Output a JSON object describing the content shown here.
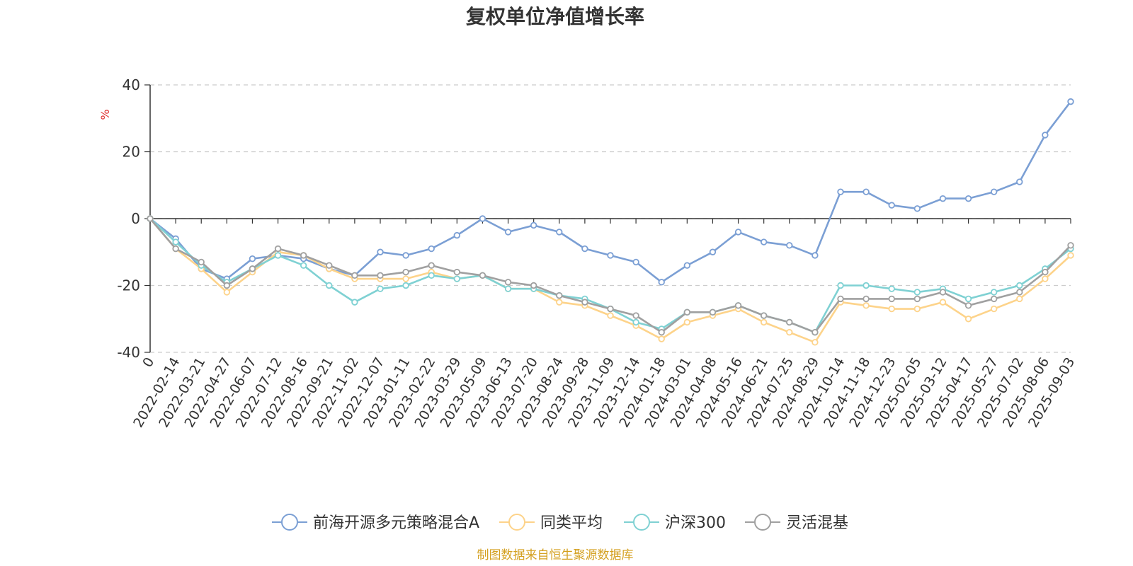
{
  "chart_data": {
    "type": "line",
    "title": "复权单位净值增长率",
    "ylabel": "%",
    "ylim": [
      -40,
      40
    ],
    "yticks": [
      40,
      20,
      0,
      -20,
      -40
    ],
    "grid": true,
    "legend_position": "bottom",
    "x_categories": [
      "0",
      "2022-02-14",
      "2022-03-21",
      "2022-04-27",
      "2022-06-07",
      "2022-07-12",
      "2022-08-16",
      "2022-09-21",
      "2022-11-02",
      "2022-12-07",
      "2023-01-11",
      "2023-02-22",
      "2023-03-29",
      "2023-05-09",
      "2023-06-13",
      "2023-07-20",
      "2023-08-24",
      "2023-09-28",
      "2023-11-09",
      "2023-12-14",
      "2024-01-18",
      "2024-03-01",
      "2024-04-08",
      "2024-05-16",
      "2024-06-21",
      "2024-07-25",
      "2024-08-29",
      "2024-10-14",
      "2024-11-18",
      "2024-12-23",
      "2025-02-05",
      "2025-03-12",
      "2025-04-17",
      "2025-05-27",
      "2025-07-02",
      "2025-08-06",
      "2025-09-03"
    ],
    "series": [
      {
        "name": "前海开源多元策略混合A",
        "color": "#7b9fd4",
        "values": [
          0,
          -6,
          -15,
          -18,
          -12,
          -11,
          -12,
          -15,
          -17,
          -10,
          -11,
          -9,
          -5,
          0,
          -4,
          -2,
          -4,
          -9,
          -11,
          -13,
          -19,
          -14,
          -10,
          -4,
          -7,
          -8,
          -11,
          8,
          8,
          4,
          3,
          6,
          6,
          8,
          11,
          25,
          35
        ]
      },
      {
        "name": "同类平均",
        "color": "#fdd38a",
        "values": [
          0,
          -9,
          -15,
          -22,
          -16,
          -10,
          -11,
          -15,
          -18,
          -18,
          -18,
          -16,
          -18,
          -17,
          -21,
          -21,
          -25,
          -26,
          -29,
          -32,
          -36,
          -31,
          -29,
          -27,
          -31,
          -34,
          -37,
          -25,
          -26,
          -27,
          -27,
          -25,
          -30,
          -27,
          -24,
          -18,
          -11
        ]
      },
      {
        "name": "沪深300",
        "color": "#7fd1d3",
        "values": [
          0,
          -7,
          -14,
          -19,
          -15,
          -11,
          -14,
          -20,
          -25,
          -21,
          -20,
          -17,
          -18,
          -17,
          -21,
          -21,
          -23,
          -24,
          -27,
          -31,
          -33,
          -28,
          -28,
          -26,
          -29,
          -31,
          -34,
          -20,
          -20,
          -21,
          -22,
          -21,
          -24,
          -22,
          -20,
          -15,
          -9
        ]
      },
      {
        "name": "灵活混基",
        "color": "#a0a0a0",
        "values": [
          0,
          -9,
          -13,
          -20,
          -15,
          -9,
          -11,
          -14,
          -17,
          -17,
          -16,
          -14,
          -16,
          -17,
          -19,
          -20,
          -23,
          -25,
          -27,
          -29,
          -34,
          -28,
          -28,
          -26,
          -29,
          -31,
          -34,
          -24,
          -24,
          -24,
          -24,
          -22,
          -26,
          -24,
          -22,
          -16,
          -8
        ]
      }
    ]
  },
  "footer": {
    "source": "制图数据来自恒生聚源数据库",
    "source_color": "#d4a020"
  }
}
